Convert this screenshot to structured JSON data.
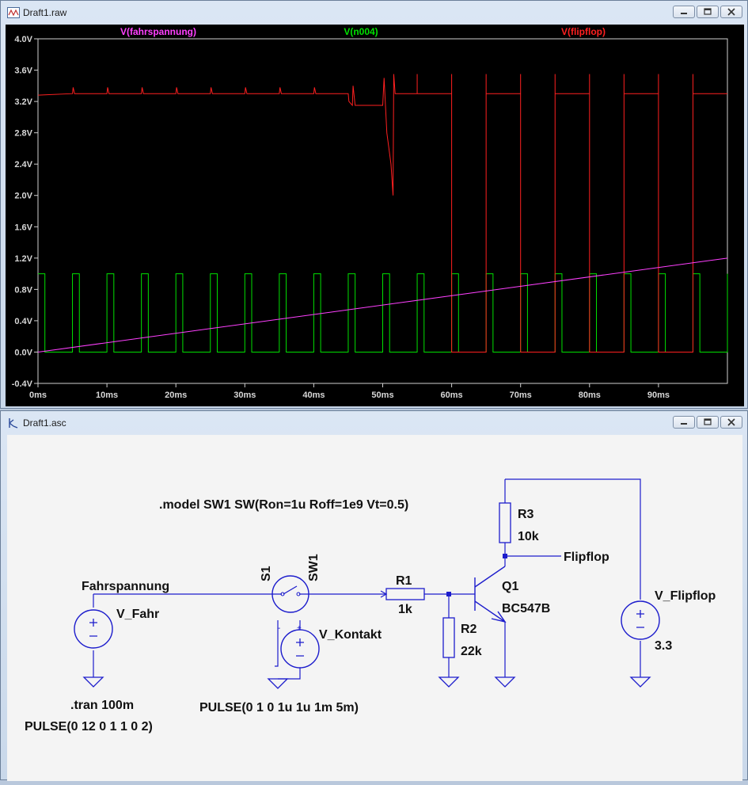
{
  "plot_window": {
    "title": "Draft1.raw",
    "buttons": [
      "minimize",
      "maximize",
      "close"
    ]
  },
  "schematic_window": {
    "title": "Draft1.asc",
    "buttons": [
      "minimize",
      "maximize",
      "close"
    ]
  },
  "chart_data": {
    "type": "line",
    "xlabel": "",
    "ylabel": "",
    "xlim": [
      0,
      100
    ],
    "ylim": [
      -0.4,
      4.0
    ],
    "x_ticks": [
      "0ms",
      "10ms",
      "20ms",
      "30ms",
      "40ms",
      "50ms",
      "60ms",
      "70ms",
      "80ms",
      "90ms"
    ],
    "y_ticks": [
      "4.0V",
      "3.6V",
      "3.2V",
      "2.8V",
      "2.4V",
      "2.0V",
      "1.6V",
      "1.2V",
      "0.8V",
      "0.4V",
      "0.0V",
      "-0.4V"
    ],
    "grid": false,
    "legend_position": "top",
    "series": [
      {
        "name": "V(fahrspannung)",
        "color": "#ff40ff",
        "x": [
          0,
          100
        ],
        "y": [
          0.0,
          1.2
        ]
      },
      {
        "name": "V(n004)",
        "color": "#00e000",
        "description": "pulse 0 to 1 V, period 5 ms, high 1 ms",
        "period_ms": 5,
        "high_ms": 1,
        "high_v": 1.0,
        "low_v": 0.0
      },
      {
        "name": "V(flipflop)",
        "color": "#ff2020",
        "high_v": 3.3,
        "low_v": 0.0,
        "toggle_start_ms": 51,
        "dip_ms": [
          51,
          51.5
        ],
        "dip_v": 2.0
      }
    ]
  },
  "schematic": {
    "model_text": ".model SW1 SW(Ron=1u Roff=1e9 Vt=0.5)",
    "net_fahrspannung": "Fahrspannung",
    "net_flipflop": "Flipflop",
    "v_fahr": {
      "name": "V_Fahr",
      "value": "PULSE(0 12 0 1 1 0 2)"
    },
    "tran": ".tran 100m",
    "s1": {
      "name": "S1",
      "model": "SW1"
    },
    "v_kontakt": {
      "name": "V_Kontakt",
      "value": "PULSE(0 1 0 1u 1u 1m 5m)"
    },
    "r1": {
      "name": "R1",
      "value": "1k"
    },
    "r2": {
      "name": "R2",
      "value": "22k"
    },
    "r3": {
      "name": "R3",
      "value": "10k"
    },
    "q1": {
      "name": "Q1",
      "model": "BC547B"
    },
    "v_flipflop": {
      "name": "V_Flipflop",
      "value": "3.3"
    }
  }
}
